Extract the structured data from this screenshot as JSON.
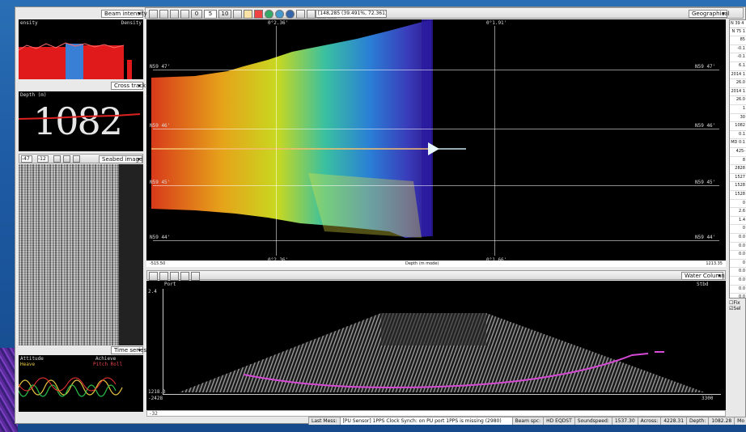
{
  "toolbar": {
    "coord": "[148,285 (39.491%, 72.361)]",
    "zoom_a": "0",
    "zoom_b": "5",
    "zoom_c": "10"
  },
  "left": {
    "beam_intensity": "Beam intensity",
    "bi_left": "ensity",
    "bi_right": "Density",
    "cross_track": "Cross track",
    "depth_label": "Depth (m)",
    "depth_value": "1082",
    "seabed_image": "Seabed image",
    "seabed_left": "-47",
    "seabed_mid": "-12",
    "time_series": "Time series",
    "ts_left": "Attitude",
    "ts_right": "Achieve",
    "ts_l2": "Heave",
    "ts_r2": "Pitch Roll"
  },
  "geo": {
    "title": "Geographical",
    "lon_top_1": "0°2.36'",
    "lon_top_2": "0°1.91'",
    "lon_bot_1": "0°2.36'",
    "lon_bot_2": "0°1.66'",
    "lat_l1": "N59 47'",
    "lat_l2": "N59 46'",
    "lat_l3": "N59 45'",
    "lat_l4": "N59 44'",
    "lat_r1": "N59 47'",
    "lat_r2": "N59 46'",
    "lat_r3": "N59 45'",
    "lat_r4": "N59 44'",
    "scale_left": "-515.50",
    "scale_mid": "Depth (m mode)",
    "scale_right": "1213.35"
  },
  "water": {
    "title": "Water Column",
    "port": "Port",
    "stbd": "Stbd",
    "y_top": "2.4",
    "y_bot": "1218.3",
    "x_left": "-2428",
    "x_right": "3300",
    "bot_left": "-32"
  },
  "right": {
    "head": "N 39 4",
    "rows": [
      "N 75 1",
      "85",
      "-0.1",
      "-0.1",
      "6.1",
      "2014 1",
      "26.0",
      "2014 1",
      "26.0",
      "1",
      "30",
      "1082",
      "0.1",
      "MD 0:1",
      "425-",
      "8",
      "2828",
      "1527",
      "1528",
      "1528",
      "0",
      "2.6",
      "1.4",
      "0",
      "0.0",
      "0.0",
      "0.0",
      "0",
      "0.0",
      "0.0",
      "0.0",
      "0.0"
    ],
    "chk1": "Fix",
    "chk2": "Sel"
  },
  "statusbar": {
    "last_msg_label": "Last Mess:",
    "last_msg": "[PU Sensor] 1PPS Clock Synch: on PU port 1PPS is missing (2980)",
    "beam_lbl": "Beam spc:",
    "beam_val": "HD EQDST",
    "sound_lbl": "Soundspeed:",
    "sound_val": "1537.30",
    "across_lbl": "Across:",
    "across_val": "4228.31",
    "depth_lbl": "Depth:",
    "depth_val": "1082.28",
    "mod_lbl": "Mo"
  }
}
